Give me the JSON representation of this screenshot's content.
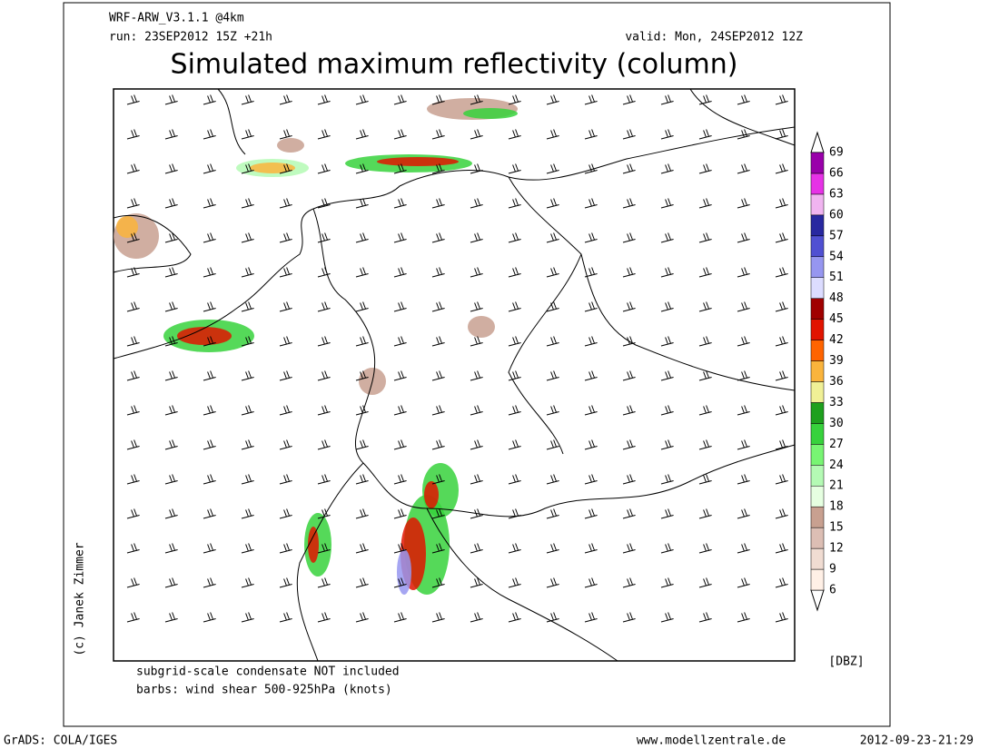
{
  "header": {
    "model": "WRF-ARW_V3.1.1 @4km",
    "run": "run: 23SEP2012 15Z +21h",
    "valid": "valid: Mon, 24SEP2012 12Z",
    "title": "Simulated maximum reflectivity (column)"
  },
  "colorbar": {
    "ticks": [
      6,
      9,
      12,
      15,
      18,
      21,
      24,
      27,
      30,
      33,
      36,
      39,
      42,
      45,
      48,
      51,
      54,
      57,
      60,
      63,
      66,
      69
    ],
    "colors": [
      "#fff0e6",
      "#f0dcd2",
      "#dcbeb4",
      "#c8a090",
      "#e6ffe1",
      "#b4fab4",
      "#78f573",
      "#37d23c",
      "#1ea01e",
      "#f0f096",
      "#fab43c",
      "#ff6400",
      "#e11400",
      "#a00000",
      "#dcdcff",
      "#9696f0",
      "#5050d2",
      "#2828a0",
      "#f0b4f0",
      "#e632e6",
      "#9900aa"
    ],
    "unit": "[DBZ]"
  },
  "notes": [
    "subgrid-scale condensate NOT included",
    "barbs: wind shear 500-925hPa (knots)"
  ],
  "credit": "(c) Janek Zimmer",
  "footer": {
    "left": "GrADS: COLA/IGES",
    "center": "www.modellzentrale.de",
    "right": "2012-09-23-21:29"
  }
}
